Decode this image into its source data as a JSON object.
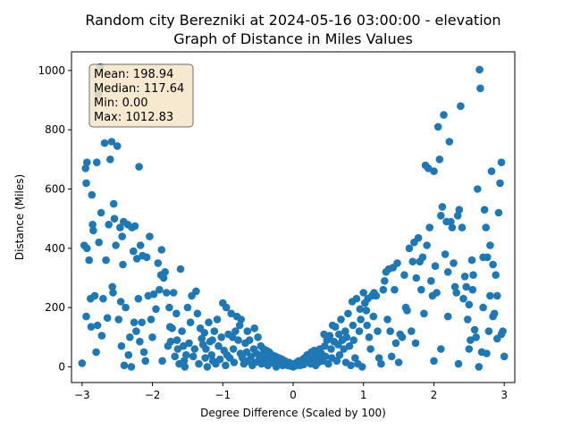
{
  "chart_data": {
    "type": "scatter",
    "title": "Random city Berezniki at 2024-05-16 03:00:00  - elevation",
    "subtitle": "Graph of Distance in Miles Values",
    "xlabel": "Degree Difference (Scaled by 100)",
    "ylabel": "Distance (Miles)",
    "xlim": [
      -3.15,
      3.15
    ],
    "ylim": [
      -53,
      1063
    ],
    "x_ticks": [
      -3,
      -2,
      -1,
      0,
      1,
      2,
      3
    ],
    "x_tick_labels": [
      "−3",
      "−2",
      "−1",
      "0",
      "1",
      "2",
      "3"
    ],
    "y_ticks": [
      0,
      200,
      400,
      600,
      800,
      1000
    ],
    "y_tick_labels": [
      "0",
      "200",
      "400",
      "600",
      "800",
      "1000"
    ],
    "grid": false,
    "point_color": "#1f77b4",
    "stats_box": {
      "lines": [
        "Mean: 198.94",
        "Median: 117.64",
        "Min: 0.00",
        "Max: 1012.83"
      ],
      "background": "#f5e6c8",
      "border": "#555555"
    },
    "points": [
      [
        -3.0,
        12
      ],
      [
        -2.95,
        670
      ],
      [
        -2.93,
        690
      ],
      [
        -2.94,
        620
      ],
      [
        -2.97,
        410
      ],
      [
        -2.93,
        400
      ],
      [
        -2.94,
        170
      ],
      [
        -2.9,
        360
      ],
      [
        -2.88,
        230
      ],
      [
        -2.87,
        135
      ],
      [
        -2.86,
        580
      ],
      [
        -2.85,
        480
      ],
      [
        -2.84,
        460
      ],
      [
        -2.82,
        240
      ],
      [
        -2.8,
        50
      ],
      [
        -2.79,
        690
      ],
      [
        -2.78,
        140
      ],
      [
        -2.77,
        920
      ],
      [
        -2.76,
        420
      ],
      [
        -2.74,
        1012
      ],
      [
        -2.73,
        520
      ],
      [
        -2.72,
        105
      ],
      [
        -2.7,
        230
      ],
      [
        -2.68,
        755
      ],
      [
        -2.66,
        360
      ],
      [
        -2.64,
        165
      ],
      [
        -2.62,
        480
      ],
      [
        -2.6,
        700
      ],
      [
        -2.58,
        760
      ],
      [
        -2.57,
        270
      ],
      [
        -2.56,
        250
      ],
      [
        -2.55,
        550
      ],
      [
        -2.54,
        500
      ],
      [
        -2.52,
        410
      ],
      [
        -2.5,
        745
      ],
      [
        -2.48,
        160
      ],
      [
        -2.46,
        470
      ],
      [
        -2.45,
        220
      ],
      [
        -2.44,
        70
      ],
      [
        -2.43,
        440
      ],
      [
        -2.42,
        345
      ],
      [
        -2.41,
        490
      ],
      [
        -2.4,
        5
      ],
      [
        -2.38,
        200
      ],
      [
        -2.35,
        480
      ],
      [
        -2.34,
        40
      ],
      [
        -2.32,
        100
      ],
      [
        -2.3,
        0
      ],
      [
        -2.29,
        470
      ],
      [
        -2.27,
        390
      ],
      [
        -2.26,
        150
      ],
      [
        -2.25,
        475
      ],
      [
        -2.23,
        120
      ],
      [
        -2.22,
        365
      ],
      [
        -2.2,
        230
      ],
      [
        -2.19,
        675
      ],
      [
        -2.18,
        85
      ],
      [
        -2.17,
        410
      ],
      [
        -2.15,
        150
      ],
      [
        -2.14,
        375
      ],
      [
        -2.12,
        50
      ],
      [
        -2.1,
        20
      ],
      [
        -2.08,
        370
      ],
      [
        -2.06,
        240
      ],
      [
        -2.04,
        440
      ],
      [
        -2.02,
        160
      ],
      [
        -2.0,
        100
      ],
      [
        -1.98,
        245
      ],
      [
        -1.95,
        195
      ],
      [
        -1.92,
        350
      ],
      [
        -1.9,
        260
      ],
      [
        -1.88,
        310
      ],
      [
        -1.87,
        395
      ],
      [
        -1.86,
        20
      ],
      [
        -1.84,
        300
      ],
      [
        -1.82,
        320
      ],
      [
        -1.8,
        250
      ],
      [
        -1.78,
        70
      ],
      [
        -1.76,
        200
      ],
      [
        -1.75,
        135
      ],
      [
        -1.74,
        85
      ],
      [
        -1.72,
        130
      ],
      [
        -1.7,
        250
      ],
      [
        -1.68,
        35
      ],
      [
        -1.66,
        180
      ],
      [
        -1.65,
        90
      ],
      [
        -1.64,
        60
      ],
      [
        -1.62,
        10
      ],
      [
        -1.6,
        330
      ],
      [
        -1.58,
        120
      ],
      [
        -1.56,
        70
      ],
      [
        -1.55,
        20
      ],
      [
        -1.54,
        0
      ],
      [
        -1.52,
        40
      ],
      [
        -1.5,
        200
      ],
      [
        -1.48,
        80
      ],
      [
        -1.46,
        150
      ],
      [
        -1.44,
        240
      ],
      [
        -1.42,
        35
      ],
      [
        -1.4,
        60
      ],
      [
        -1.38,
        255
      ],
      [
        -1.36,
        180
      ],
      [
        -1.34,
        10
      ],
      [
        -1.32,
        130
      ],
      [
        -1.3,
        95
      ],
      [
        -1.28,
        75
      ],
      [
        -1.26,
        115
      ],
      [
        -1.25,
        30
      ],
      [
        -1.24,
        60
      ],
      [
        -1.22,
        0
      ],
      [
        -1.2,
        150
      ],
      [
        -1.18,
        85
      ],
      [
        -1.16,
        40
      ],
      [
        -1.15,
        90
      ],
      [
        -1.14,
        20
      ],
      [
        -1.12,
        120
      ],
      [
        -1.1,
        10
      ],
      [
        -1.08,
        160
      ],
      [
        -1.06,
        70
      ],
      [
        -1.04,
        25
      ],
      [
        -1.02,
        100
      ],
      [
        -1.0,
        215
      ],
      [
        -0.98,
        55
      ],
      [
        -0.96,
        5
      ],
      [
        -0.95,
        200
      ],
      [
        -0.94,
        40
      ],
      [
        -0.92,
        110
      ],
      [
        -0.9,
        30
      ],
      [
        -0.88,
        180
      ],
      [
        -0.86,
        100
      ],
      [
        -0.85,
        60
      ],
      [
        -0.84,
        15
      ],
      [
        -0.82,
        120
      ],
      [
        -0.8,
        170
      ],
      [
        -0.78,
        90
      ],
      [
        -0.76,
        140
      ],
      [
        -0.75,
        45
      ],
      [
        -0.74,
        160
      ],
      [
        -0.72,
        30
      ],
      [
        -0.7,
        10
      ],
      [
        -0.68,
        80
      ],
      [
        -0.66,
        50
      ],
      [
        -0.65,
        120
      ],
      [
        -0.64,
        20
      ],
      [
        -0.62,
        90
      ],
      [
        -0.6,
        35
      ],
      [
        -0.58,
        5
      ],
      [
        -0.56,
        60
      ],
      [
        -0.55,
        130
      ],
      [
        -0.54,
        15
      ],
      [
        -0.52,
        45
      ],
      [
        -0.5,
        100
      ],
      [
        -0.48,
        25
      ],
      [
        -0.46,
        70
      ],
      [
        -0.45,
        10
      ],
      [
        -0.44,
        40
      ],
      [
        -0.42,
        60
      ],
      [
        -0.4,
        20
      ],
      [
        -0.38,
        55
      ],
      [
        -0.36,
        5
      ],
      [
        -0.35,
        30
      ],
      [
        -0.34,
        50
      ],
      [
        -0.32,
        15
      ],
      [
        -0.3,
        40
      ],
      [
        -0.28,
        25
      ],
      [
        -0.26,
        10
      ],
      [
        -0.25,
        35
      ],
      [
        -0.24,
        0
      ],
      [
        -0.22,
        20
      ],
      [
        -0.2,
        30
      ],
      [
        -0.18,
        10
      ],
      [
        -0.16,
        25
      ],
      [
        -0.15,
        5
      ],
      [
        -0.14,
        15
      ],
      [
        -0.12,
        20
      ],
      [
        -0.1,
        10
      ],
      [
        -0.08,
        5
      ],
      [
        -0.06,
        15
      ],
      [
        -0.05,
        8
      ],
      [
        -0.04,
        3
      ],
      [
        -0.02,
        10
      ],
      [
        0.0,
        0
      ],
      [
        0.02,
        8
      ],
      [
        0.04,
        4
      ],
      [
        0.05,
        15
      ],
      [
        0.06,
        10
      ],
      [
        0.08,
        20
      ],
      [
        0.1,
        5
      ],
      [
        0.12,
        12
      ],
      [
        0.14,
        25
      ],
      [
        0.15,
        8
      ],
      [
        0.16,
        30
      ],
      [
        0.18,
        15
      ],
      [
        0.2,
        40
      ],
      [
        0.22,
        20
      ],
      [
        0.24,
        35
      ],
      [
        0.25,
        10
      ],
      [
        0.26,
        50
      ],
      [
        0.28,
        25
      ],
      [
        0.3,
        55
      ],
      [
        0.32,
        5
      ],
      [
        0.34,
        40
      ],
      [
        0.35,
        30
      ],
      [
        0.36,
        15
      ],
      [
        0.38,
        60
      ],
      [
        0.4,
        45
      ],
      [
        0.42,
        20
      ],
      [
        0.44,
        110
      ],
      [
        0.45,
        70
      ],
      [
        0.46,
        35
      ],
      [
        0.48,
        90
      ],
      [
        0.5,
        10
      ],
      [
        0.52,
        105
      ],
      [
        0.54,
        60
      ],
      [
        0.55,
        30
      ],
      [
        0.56,
        140
      ],
      [
        0.58,
        85
      ],
      [
        0.6,
        135
      ],
      [
        0.62,
        20
      ],
      [
        0.64,
        75
      ],
      [
        0.65,
        110
      ],
      [
        0.66,
        40
      ],
      [
        0.68,
        160
      ],
      [
        0.7,
        90
      ],
      [
        0.72,
        60
      ],
      [
        0.74,
        120
      ],
      [
        0.75,
        15
      ],
      [
        0.76,
        100
      ],
      [
        0.78,
        180
      ],
      [
        0.8,
        70
      ],
      [
        0.82,
        5
      ],
      [
        0.84,
        220
      ],
      [
        0.85,
        140
      ],
      [
        0.86,
        90
      ],
      [
        0.88,
        30
      ],
      [
        0.9,
        230
      ],
      [
        0.92,
        10
      ],
      [
        0.94,
        120
      ],
      [
        0.95,
        195
      ],
      [
        0.96,
        160
      ],
      [
        0.98,
        0
      ],
      [
        1.0,
        250
      ],
      [
        1.02,
        215
      ],
      [
        1.04,
        190
      ],
      [
        1.05,
        140
      ],
      [
        1.06,
        230
      ],
      [
        1.08,
        100
      ],
      [
        1.1,
        60
      ],
      [
        1.12,
        240
      ],
      [
        1.14,
        170
      ],
      [
        1.15,
        250
      ],
      [
        1.18,
        240
      ],
      [
        1.2,
        120
      ],
      [
        1.22,
        30
      ],
      [
        1.25,
        10
      ],
      [
        1.28,
        260
      ],
      [
        1.3,
        290
      ],
      [
        1.32,
        320
      ],
      [
        1.34,
        160
      ],
      [
        1.36,
        330
      ],
      [
        1.38,
        120
      ],
      [
        1.4,
        35
      ],
      [
        1.42,
        335
      ],
      [
        1.44,
        260
      ],
      [
        1.46,
        80
      ],
      [
        1.48,
        350
      ],
      [
        1.5,
        15
      ],
      [
        1.52,
        110
      ],
      [
        1.55,
        100
      ],
      [
        1.58,
        310
      ],
      [
        1.6,
        200
      ],
      [
        1.62,
        190
      ],
      [
        1.65,
        400
      ],
      [
        1.68,
        120
      ],
      [
        1.7,
        355
      ],
      [
        1.72,
        420
      ],
      [
        1.74,
        80
      ],
      [
        1.75,
        300
      ],
      [
        1.78,
        435
      ],
      [
        1.8,
        355
      ],
      [
        1.82,
        260
      ],
      [
        1.84,
        370
      ],
      [
        1.86,
        180
      ],
      [
        1.88,
        680
      ],
      [
        1.9,
        410
      ],
      [
        1.92,
        670
      ],
      [
        1.94,
        470
      ],
      [
        1.96,
        290
      ],
      [
        1.98,
        240
      ],
      [
        2.0,
        20
      ],
      [
        2.02,
        340
      ],
      [
        2.04,
        250
      ],
      [
        2.06,
        810
      ],
      [
        2.08,
        700
      ],
      [
        2.1,
        510
      ],
      [
        2.12,
        540
      ],
      [
        2.14,
        850
      ],
      [
        2.16,
        380
      ],
      [
        2.18,
        490
      ],
      [
        2.2,
        320
      ],
      [
        2.22,
        760
      ],
      [
        2.24,
        490
      ],
      [
        2.26,
        470
      ],
      [
        2.28,
        350
      ],
      [
        2.3,
        270
      ],
      [
        2.32,
        250
      ],
      [
        2.34,
        510
      ],
      [
        2.36,
        530
      ],
      [
        2.38,
        880
      ],
      [
        2.4,
        470
      ],
      [
        2.42,
        230
      ],
      [
        2.44,
        305
      ],
      [
        2.46,
        270
      ],
      [
        2.48,
        160
      ],
      [
        2.5,
        210
      ],
      [
        2.52,
        90
      ],
      [
        2.54,
        360
      ],
      [
        2.56,
        310
      ],
      [
        2.58,
        125
      ],
      [
        2.6,
        100
      ],
      [
        2.62,
        600
      ],
      [
        2.64,
        0
      ],
      [
        2.65,
        1003
      ],
      [
        2.66,
        940
      ],
      [
        2.68,
        50
      ],
      [
        2.7,
        200
      ],
      [
        2.72,
        530
      ],
      [
        2.74,
        470
      ],
      [
        2.76,
        370
      ],
      [
        2.78,
        120
      ],
      [
        2.8,
        410
      ],
      [
        2.82,
        660
      ],
      [
        2.84,
        345
      ],
      [
        2.86,
        180
      ],
      [
        2.88,
        310
      ],
      [
        2.9,
        240
      ],
      [
        2.92,
        520
      ],
      [
        2.94,
        620
      ],
      [
        2.96,
        690
      ],
      [
        2.98,
        120
      ],
      [
        3.0,
        35
      ],
      [
        2.96,
        110
      ],
      [
        2.9,
        95
      ],
      [
        2.84,
        170
      ],
      [
        2.8,
        240
      ],
      [
        2.75,
        45
      ],
      [
        2.7,
        370
      ],
      [
        2.55,
        260
      ],
      [
        2.5,
        60
      ],
      [
        2.35,
        10
      ],
      [
        2.2,
        170
      ],
      [
        2.1,
        60
      ],
      [
        2.0,
        660
      ]
    ]
  }
}
